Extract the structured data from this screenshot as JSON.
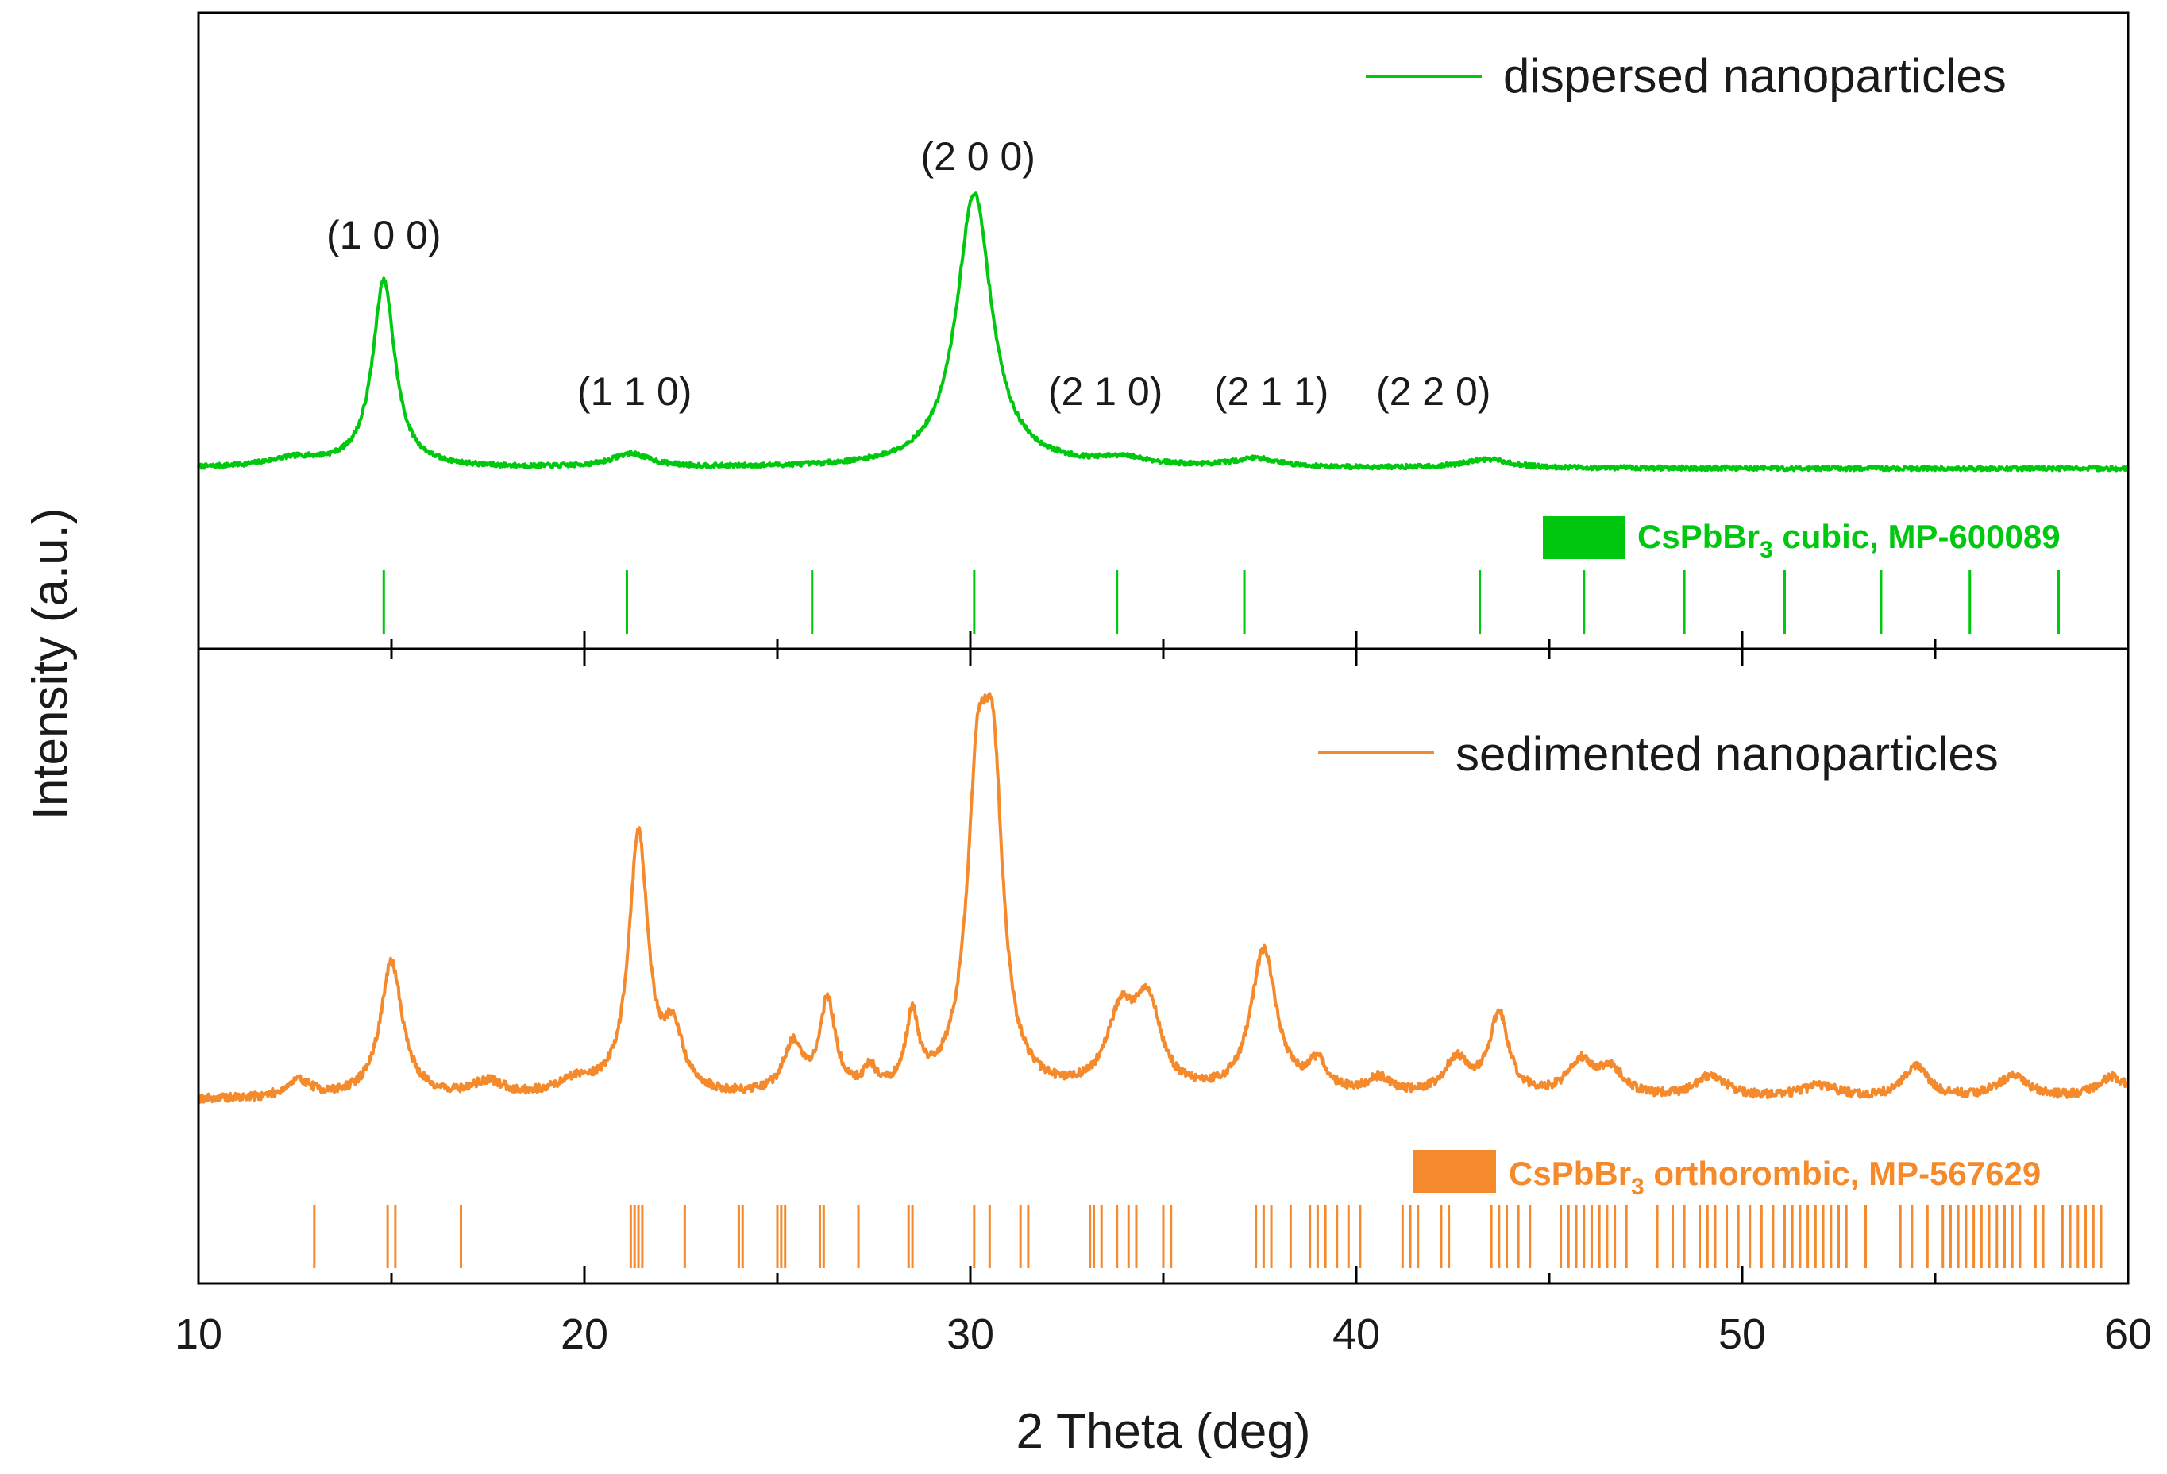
{
  "chart_data": {
    "type": "line",
    "figure": "X-ray powder diffraction patterns, stacked panels",
    "xlabel": "2 Theta (deg)",
    "ylabel": "Intensity (a.u.)",
    "xlim": [
      10,
      60
    ],
    "xticks": [
      10,
      20,
      30,
      40,
      50,
      60
    ],
    "panels": [
      {
        "name": "dispersed",
        "series_name": "dispersed nanoparticles",
        "color": "#00c80f",
        "baseline": 1.0,
        "noise": 0.18,
        "ymax": 12,
        "peaks": [
          {
            "x": 12.5,
            "h": 0.35,
            "w": 0.9
          },
          {
            "x": 14.8,
            "h": 7.6,
            "w": 0.35
          },
          {
            "x": 21.2,
            "h": 0.55,
            "w": 0.6
          },
          {
            "x": 30.1,
            "h": 11.2,
            "w": 0.55
          },
          {
            "x": 34.0,
            "h": 0.3,
            "w": 0.8
          },
          {
            "x": 37.4,
            "h": 0.35,
            "w": 0.7
          },
          {
            "x": 43.4,
            "h": 0.35,
            "w": 0.7
          }
        ],
        "peak_labels": [
          {
            "x": 14.8,
            "text": "(1 0 0)"
          },
          {
            "x": 21.3,
            "text": "(1 1 0)"
          },
          {
            "x": 30.2,
            "text": "(2 0 0)"
          },
          {
            "x": 33.5,
            "text": "(2 1 0)"
          },
          {
            "x": 37.8,
            "text": "(2 1 1)"
          },
          {
            "x": 42.0,
            "text": "(2 2 0)"
          }
        ],
        "reference": {
          "label": "CsPbBr",
          "label_sub": "3",
          "label_rest": " cubic, MP-600089",
          "color": "#00c80f",
          "positions": [
            14.8,
            21.1,
            25.9,
            30.1,
            33.8,
            37.1,
            43.2,
            45.9,
            48.5,
            51.1,
            53.6,
            55.9,
            58.2
          ]
        }
      },
      {
        "name": "sedimented",
        "series_name": "sedimented nanoparticles",
        "color": "#f58a2d",
        "baseline": 1.0,
        "noise": 0.35,
        "ymax": 12,
        "peaks": [
          {
            "x": 12.6,
            "h": 0.7,
            "w": 0.4
          },
          {
            "x": 15.0,
            "h": 5.6,
            "w": 0.35
          },
          {
            "x": 17.5,
            "h": 0.6,
            "w": 0.5
          },
          {
            "x": 19.8,
            "h": 0.6,
            "w": 0.6
          },
          {
            "x": 21.4,
            "h": 10.8,
            "w": 0.3
          },
          {
            "x": 22.3,
            "h": 2.4,
            "w": 0.3
          },
          {
            "x": 25.4,
            "h": 2.0,
            "w": 0.3
          },
          {
            "x": 26.3,
            "h": 3.8,
            "w": 0.25
          },
          {
            "x": 27.4,
            "h": 0.9,
            "w": 0.2
          },
          {
            "x": 28.5,
            "h": 3.0,
            "w": 0.2
          },
          {
            "x": 30.2,
            "h": 12.0,
            "w": 0.35
          },
          {
            "x": 30.6,
            "h": 10.6,
            "w": 0.3
          },
          {
            "x": 33.9,
            "h": 3.1,
            "w": 0.45
          },
          {
            "x": 34.6,
            "h": 3.5,
            "w": 0.4
          },
          {
            "x": 37.6,
            "h": 6.0,
            "w": 0.4
          },
          {
            "x": 39.0,
            "h": 1.2,
            "w": 0.3
          },
          {
            "x": 40.6,
            "h": 0.7,
            "w": 0.4
          },
          {
            "x": 42.6,
            "h": 1.5,
            "w": 0.4
          },
          {
            "x": 43.7,
            "h": 3.4,
            "w": 0.3
          },
          {
            "x": 45.8,
            "h": 1.4,
            "w": 0.4
          },
          {
            "x": 46.6,
            "h": 1.1,
            "w": 0.4
          },
          {
            "x": 49.2,
            "h": 0.9,
            "w": 0.5
          },
          {
            "x": 52.0,
            "h": 0.5,
            "w": 0.6
          },
          {
            "x": 54.5,
            "h": 1.3,
            "w": 0.4
          },
          {
            "x": 57.0,
            "h": 0.9,
            "w": 0.5
          },
          {
            "x": 59.6,
            "h": 0.9,
            "w": 0.5
          }
        ],
        "reference": {
          "label": "CsPbBr",
          "label_sub": "3",
          "label_rest": " orthorombic, MP-567629",
          "color": "#f58a2d",
          "positions": [
            13.0,
            14.9,
            15.1,
            16.8,
            21.2,
            21.3,
            21.4,
            21.5,
            22.6,
            24.0,
            24.1,
            25.0,
            25.1,
            25.2,
            26.1,
            26.2,
            27.1,
            28.4,
            28.5,
            30.1,
            30.5,
            31.3,
            31.5,
            33.1,
            33.2,
            33.4,
            33.8,
            34.1,
            34.3,
            35.0,
            35.2,
            37.4,
            37.6,
            37.8,
            38.3,
            38.8,
            39.0,
            39.2,
            39.5,
            39.8,
            40.1,
            41.2,
            41.4,
            41.6,
            42.2,
            42.4,
            43.5,
            43.7,
            43.9,
            44.2,
            44.5,
            45.3,
            45.5,
            45.7,
            45.9,
            46.1,
            46.3,
            46.5,
            46.7,
            47.0,
            47.8,
            48.2,
            48.5,
            48.9,
            49.1,
            49.3,
            49.6,
            49.9,
            50.2,
            50.5,
            50.8,
            51.1,
            51.3,
            51.5,
            51.7,
            51.9,
            52.1,
            52.3,
            52.5,
            52.7,
            53.2,
            54.1,
            54.4,
            54.8,
            55.2,
            55.4,
            55.6,
            55.8,
            56.0,
            56.2,
            56.4,
            56.6,
            56.8,
            57.0,
            57.2,
            57.6,
            57.8,
            58.3,
            58.5,
            58.7,
            58.9,
            59.1,
            59.3
          ]
        }
      }
    ]
  }
}
